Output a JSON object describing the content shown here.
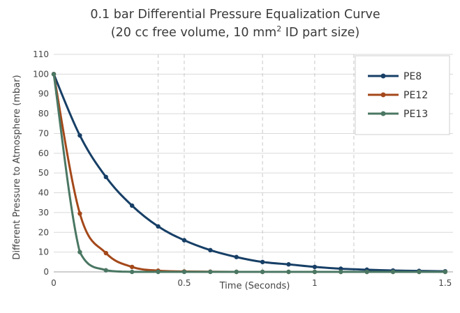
{
  "chart_data": {
    "type": "line",
    "title": "0.1 bar Differential Pressure Equalization Curve",
    "subtitle_prefix": "(20 cc free volume, 10 mm",
    "subtitle_sup": "2",
    "subtitle_suffix": " ID part size)",
    "xlabel": "Time (Seconds)",
    "ylabel": "Different Pressure to Atmosphere (mbar)",
    "xlim": [
      0,
      1.53
    ],
    "ylim": [
      0,
      110
    ],
    "x_ticks": [
      0,
      0.5,
      1,
      1.5
    ],
    "x_tick_labels": [
      "0",
      "0.5",
      "1",
      "1.5"
    ],
    "y_ticks": [
      0,
      10,
      20,
      30,
      40,
      50,
      60,
      70,
      80,
      90,
      100,
      110
    ],
    "y_tick_labels": [
      "0",
      "10",
      "20",
      "30",
      "40",
      "50",
      "60",
      "70",
      "80",
      "90",
      "100",
      "110"
    ],
    "grid": "horizontal solid lines, dashed vertical lines at 0.4, 0.5, 0.8, 1.0, 1.15",
    "vgrid": [
      0.4,
      0.5,
      0.8,
      1.0,
      1.15
    ],
    "legend_position": "top-right",
    "series": [
      {
        "name": "PE8",
        "color": "#173f66",
        "x": [
          0,
          0.1,
          0.2,
          0.3,
          0.4,
          0.5,
          0.6,
          0.7,
          0.8,
          0.9,
          1.0,
          1.1,
          1.2,
          1.3,
          1.4,
          1.5
        ],
        "y": [
          100,
          69,
          48,
          33.5,
          23,
          16,
          11,
          7.5,
          5,
          3.8,
          2.5,
          1.6,
          1.1,
          0.7,
          0.5,
          0.3
        ]
      },
      {
        "name": "PE12",
        "color": "#a4481a",
        "x": [
          0,
          0.1,
          0.2,
          0.3,
          0.4,
          0.5,
          0.6,
          0.7,
          0.8,
          0.9,
          1.0,
          1.1,
          1.2,
          1.3,
          1.4,
          1.5
        ],
        "y": [
          100,
          29.5,
          9.5,
          2.5,
          0.6,
          0.2,
          0.1,
          0,
          0,
          0,
          0,
          0,
          0,
          0,
          0,
          0
        ]
      },
      {
        "name": "PE13",
        "color": "#4a7763",
        "x": [
          0,
          0.1,
          0.2,
          0.3,
          0.4,
          0.5,
          0.6,
          0.7,
          0.8,
          0.9,
          1.0,
          1.1,
          1.2,
          1.3,
          1.4,
          1.5
        ],
        "y": [
          100,
          10,
          0.8,
          0,
          0,
          0,
          0,
          0,
          0,
          0,
          0,
          0,
          0,
          0,
          0,
          0
        ]
      }
    ]
  }
}
